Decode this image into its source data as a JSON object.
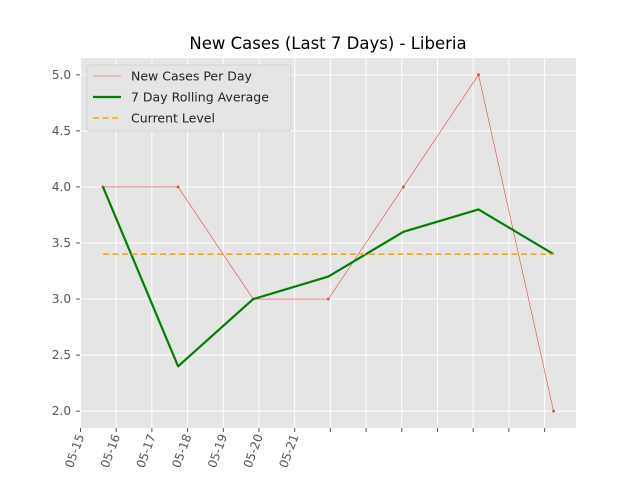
{
  "chart_data": {
    "type": "line",
    "title": "New Cases (Last 7 Days) - Liberia",
    "xlabel": "",
    "ylabel": "",
    "x_tick_labels": [
      "05-15",
      "05-16",
      "05-17",
      "05-18",
      "05-19",
      "05-20",
      "05-21"
    ],
    "y_tick_labels": [
      "2.0",
      "2.5",
      "3.0",
      "3.5",
      "4.0",
      "4.5",
      "5.0"
    ],
    "y_ticks": [
      2.0,
      2.5,
      3.0,
      3.5,
      4.0,
      4.5,
      5.0
    ],
    "ylim": [
      1.85,
      5.15
    ],
    "grid": true,
    "legend_position": "upper-left",
    "series": [
      {
        "name": "New Cases Per Day",
        "style": "thin-line-with-point-markers",
        "color": "#E24A33",
        "x": [
          0,
          1,
          2,
          3,
          4,
          5,
          6
        ],
        "values": [
          4.0,
          4.0,
          3.0,
          3.0,
          4.0,
          5.0,
          2.0
        ]
      },
      {
        "name": "7 Day Rolling Average",
        "style": "thick-line",
        "color": "#008000",
        "x": [
          0,
          1,
          2,
          3,
          4,
          5,
          6
        ],
        "values": [
          4.0,
          2.4,
          3.0,
          3.2,
          3.6,
          3.8,
          3.4
        ]
      },
      {
        "name": "Current Level",
        "style": "dashed-line",
        "color": "#FFA500",
        "x": [
          0,
          6
        ],
        "values": [
          3.4,
          3.4
        ]
      }
    ]
  }
}
